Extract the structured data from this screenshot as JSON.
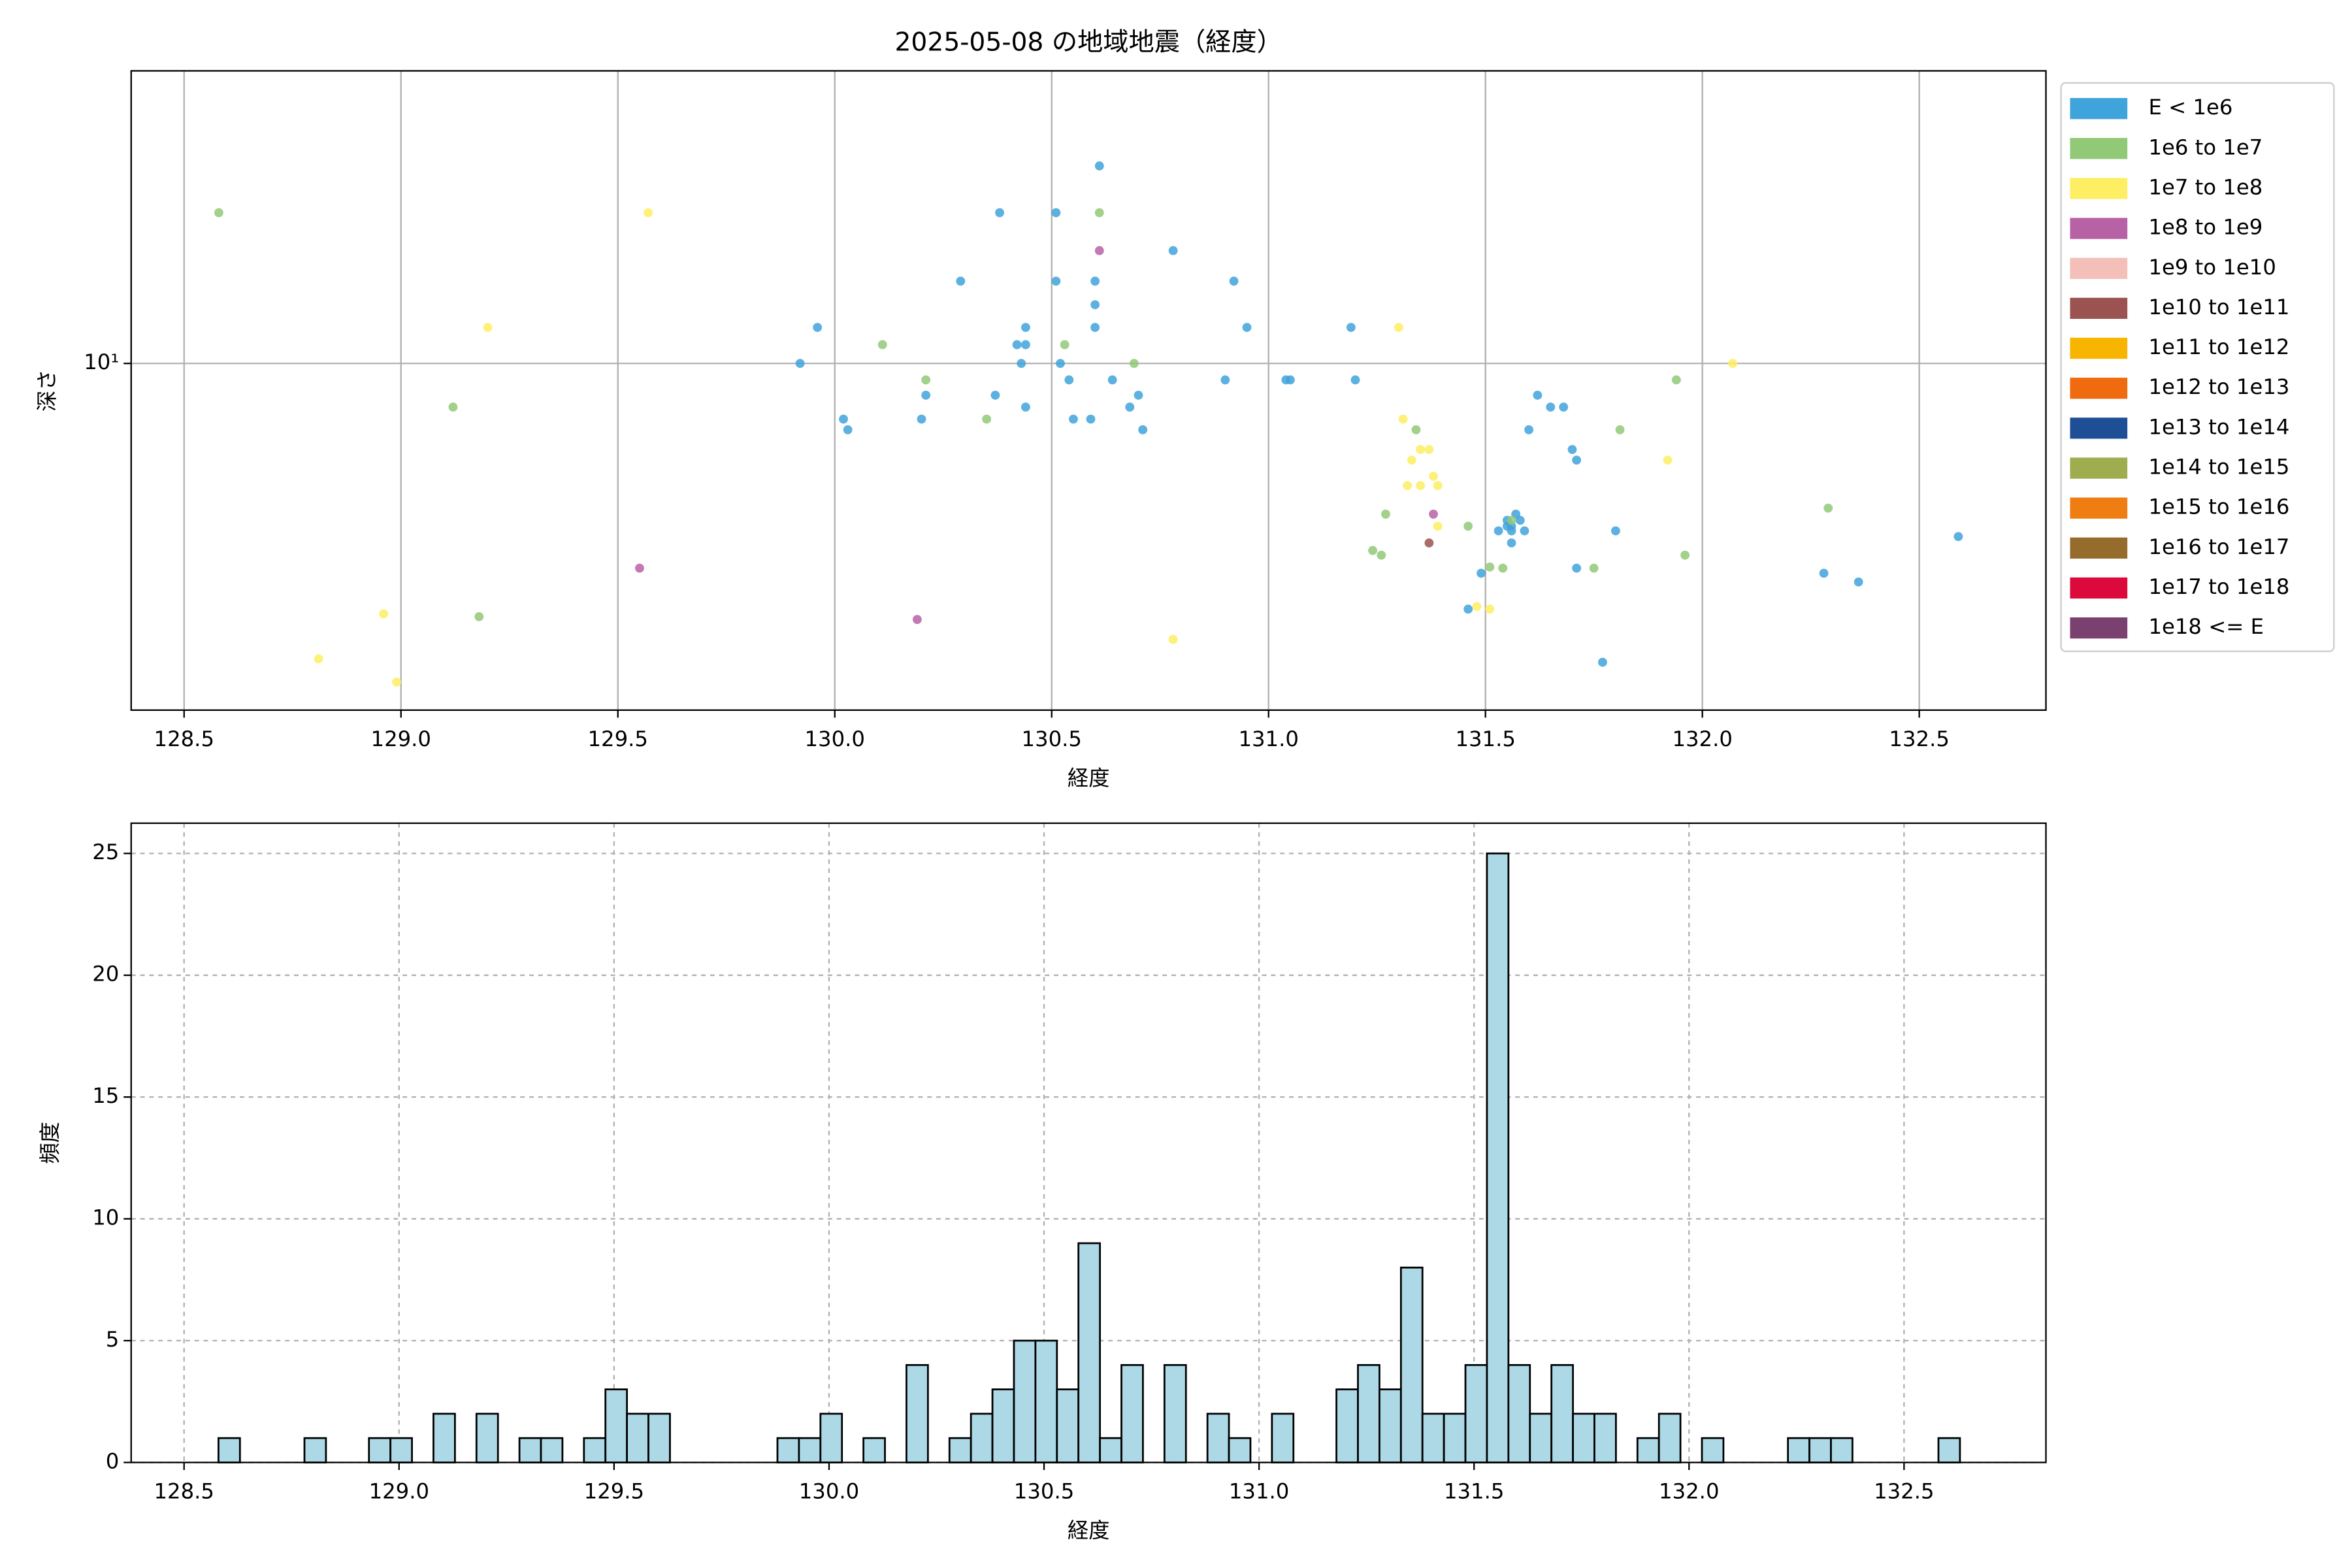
{
  "chart_data": [
    {
      "type": "scatter",
      "title": "2025-05-08 の地域地震（経度）",
      "x_label": "経度",
      "y_label": "深さ",
      "xlim": [
        128.378,
        132.792
      ],
      "ylim": [
        2.03,
        38.4
      ],
      "y_scale": "log",
      "grid": true,
      "legend": "outside upper right",
      "xticks": [
        128.5,
        {
          "value": 129,
          "label": "129.0"
        },
        129.5,
        {
          "value": 130,
          "label": "130.0"
        },
        130.5,
        {
          "value": 131,
          "label": "131.0"
        },
        131.5,
        {
          "value": 132,
          "label": "132.0"
        },
        132.5
      ],
      "yticks": [
        {
          "value": 10,
          "label": "10¹"
        }
      ],
      "series": [
        {
          "name": "E < 1e6",
          "color": "#3fa3dc",
          "x": [
            130.61,
            130.38,
            130.51,
            130.78,
            130.29,
            130.51,
            130.6,
            130.92,
            130.6,
            129.96,
            130.44,
            130.6,
            130.95,
            131.19,
            130.42,
            130.44,
            129.92,
            130.43,
            130.52,
            130.54,
            130.64,
            130.9,
            131.04,
            131.05,
            131.2,
            130.21,
            130.37,
            130.7,
            131.62,
            130.44,
            130.68,
            131.65,
            131.68,
            130.02,
            130.2,
            130.55,
            130.59,
            130.03,
            130.71,
            131.6,
            131.7,
            131.71,
            131.57,
            131.55,
            131.58,
            131.56,
            131.55,
            131.59,
            131.56,
            131.53,
            131.8,
            132.59,
            131.56,
            131.49,
            131.71,
            132.28,
            132.36,
            131.46,
            131.77
          ],
          "values": [
            24.8,
            20.0,
            20.0,
            16.8,
            14.6,
            14.6,
            14.6,
            14.6,
            13.1,
            11.8,
            11.8,
            11.8,
            11.8,
            11.8,
            10.9,
            10.9,
            10,
            10,
            10,
            9.27,
            9.27,
            9.27,
            9.27,
            9.27,
            9.27,
            8.64,
            8.64,
            8.64,
            8.64,
            8.18,
            8.18,
            8.18,
            8.18,
            7.74,
            7.74,
            7.74,
            7.74,
            7.37,
            7.37,
            7.37,
            6.73,
            6.41,
            5.0,
            4.86,
            4.86,
            4.73,
            4.73,
            4.63,
            4.63,
            4.63,
            4.63,
            4.51,
            4.38,
            3.81,
            3.9,
            3.81,
            3.66,
            3.23,
            2.53
          ]
        },
        {
          "name": "1e6 to 1e7",
          "color": "#92c977",
          "x": [
            128.58,
            129.12,
            129.18,
            130.11,
            130.21,
            130.35,
            130.53,
            130.61,
            130.69,
            131.24,
            131.26,
            131.27,
            131.34,
            131.46,
            131.51,
            131.54,
            131.56,
            131.75,
            131.81,
            131.94,
            131.96,
            132.29
          ],
          "values": [
            20.0,
            8.18,
            3.12,
            10.9,
            9.27,
            7.74,
            10.9,
            20.0,
            10,
            4.23,
            4.14,
            5.0,
            7.37,
            4.73,
            3.92,
            3.9,
            4.86,
            3.9,
            7.37,
            9.27,
            4.14,
            5.14
          ]
        },
        {
          "name": "1e7 to 1e8",
          "color": "#fdee63",
          "x": [
            128.81,
            128.96,
            128.99,
            129.2,
            129.57,
            130.78,
            131.3,
            131.31,
            131.33,
            131.35,
            131.37,
            131.32,
            131.35,
            131.38,
            131.39,
            131.39,
            131.48,
            131.51,
            131.92,
            132.07
          ],
          "values": [
            2.57,
            3.16,
            2.31,
            11.8,
            20.0,
            2.81,
            11.8,
            7.74,
            6.41,
            6.73,
            6.73,
            5.7,
            5.7,
            5.95,
            5.7,
            4.73,
            3.27,
            3.23,
            6.41,
            10
          ]
        },
        {
          "name": "1e8 to 1e9",
          "color": "#b862a6",
          "x": [
            129.55,
            130.19,
            130.61,
            131.38
          ],
          "values": [
            3.9,
            3.08,
            16.8,
            5.0
          ]
        },
        {
          "name": "1e9 to 1e10",
          "color": "#f4bfb8",
          "x": [],
          "values": []
        },
        {
          "name": "1e10 to 1e11",
          "color": "#9a5350",
          "x": [
            131.37
          ],
          "values": [
            4.38
          ]
        },
        {
          "name": "1e11 to 1e12",
          "color": "#f8b500",
          "x": [],
          "values": []
        },
        {
          "name": "1e12 to 1e13",
          "color": "#f06a0f",
          "x": [],
          "values": []
        },
        {
          "name": "1e13 to 1e14",
          "color": "#1e4f96",
          "x": [],
          "values": []
        },
        {
          "name": "1e14 to 1e15",
          "color": "#9fad4e",
          "x": [],
          "values": []
        },
        {
          "name": "1e15 to 1e16",
          "color": "#ef7d12",
          "x": [],
          "values": []
        },
        {
          "name": "1e16 to 1e17",
          "color": "#956c2c",
          "x": [],
          "values": []
        },
        {
          "name": "1e17 to 1e18",
          "color": "#dc0a3c",
          "x": [],
          "values": []
        },
        {
          "name": "1e18 <= E",
          "color": "#7a4070",
          "x": [],
          "values": []
        }
      ]
    },
    {
      "type": "histogram",
      "x_label": "経度",
      "y_label": "頻度",
      "color": "#add8e6",
      "edgecolor": "#000000",
      "grid": "dashed",
      "xlim": [
        128.377,
        132.83
      ],
      "ylim": [
        0,
        26.24
      ],
      "xticks": [
        128.5,
        {
          "value": 129,
          "label": "129.0"
        },
        129.5,
        {
          "value": 130,
          "label": "130.0"
        },
        130.5,
        {
          "value": 131,
          "label": "131.0"
        },
        131.5,
        {
          "value": 132,
          "label": "132.0"
        },
        132.5
      ],
      "yticks": [
        0,
        5,
        10,
        15,
        20,
        25
      ],
      "bins": [
        128.58,
        128.63,
        128.68,
        128.73,
        128.78,
        128.83,
        128.88,
        128.93,
        128.98,
        129.03,
        129.08,
        129.13,
        129.18,
        129.23,
        129.28,
        129.33,
        129.38,
        129.43,
        129.48,
        129.53,
        129.58,
        129.63,
        129.68,
        129.73,
        129.78,
        129.83,
        129.88,
        129.93,
        129.98,
        130.03,
        130.08,
        130.13,
        130.18,
        130.23,
        130.28,
        130.33,
        130.38,
        130.43,
        130.48,
        130.53,
        130.58,
        130.63,
        130.68,
        130.73,
        130.78,
        130.83,
        130.88,
        130.93,
        130.98,
        131.03,
        131.08,
        131.13,
        131.18,
        131.23,
        131.28,
        131.33,
        131.38,
        131.43,
        131.48,
        131.53,
        131.58,
        131.63,
        131.68,
        131.73,
        131.78,
        131.83,
        131.88,
        131.93,
        131.98,
        132.03,
        132.08,
        132.13,
        132.18,
        132.23,
        132.28,
        132.33,
        132.38,
        132.43,
        132.48,
        132.53,
        132.58,
        132.63
      ],
      "values": [
        1,
        0,
        0,
        0,
        1,
        0,
        0,
        1,
        1,
        0,
        2,
        0,
        2,
        0,
        1,
        1,
        0,
        1,
        3,
        2,
        2,
        0,
        0,
        0,
        0,
        0,
        1,
        1,
        2,
        0,
        1,
        0,
        4,
        0,
        1,
        2,
        3,
        5,
        5,
        3,
        9,
        1,
        4,
        0,
        4,
        0,
        2,
        1,
        0,
        2,
        0,
        0,
        3,
        4,
        3,
        8,
        2,
        2,
        4,
        25,
        4,
        2,
        4,
        2,
        2,
        0,
        1,
        2,
        0,
        1,
        0,
        0,
        0,
        1,
        1,
        1,
        0,
        0,
        0,
        0,
        1
      ]
    }
  ]
}
